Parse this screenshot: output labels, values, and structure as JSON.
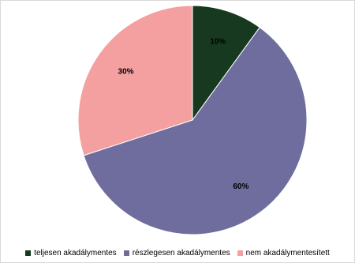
{
  "chart_data": {
    "type": "pie",
    "title": "",
    "categories": [
      "teljesen akadálymentes",
      "részlegesen akadálymentes",
      "nem akadálymentesített"
    ],
    "values": [
      10,
      60,
      30
    ],
    "value_labels": [
      "10%",
      "60%",
      "30%"
    ],
    "colors": [
      "#17391f",
      "#6e6d9e",
      "#f4a0a0"
    ],
    "start_angle_deg": 0,
    "direction": "clockwise",
    "legend_position": "bottom"
  }
}
